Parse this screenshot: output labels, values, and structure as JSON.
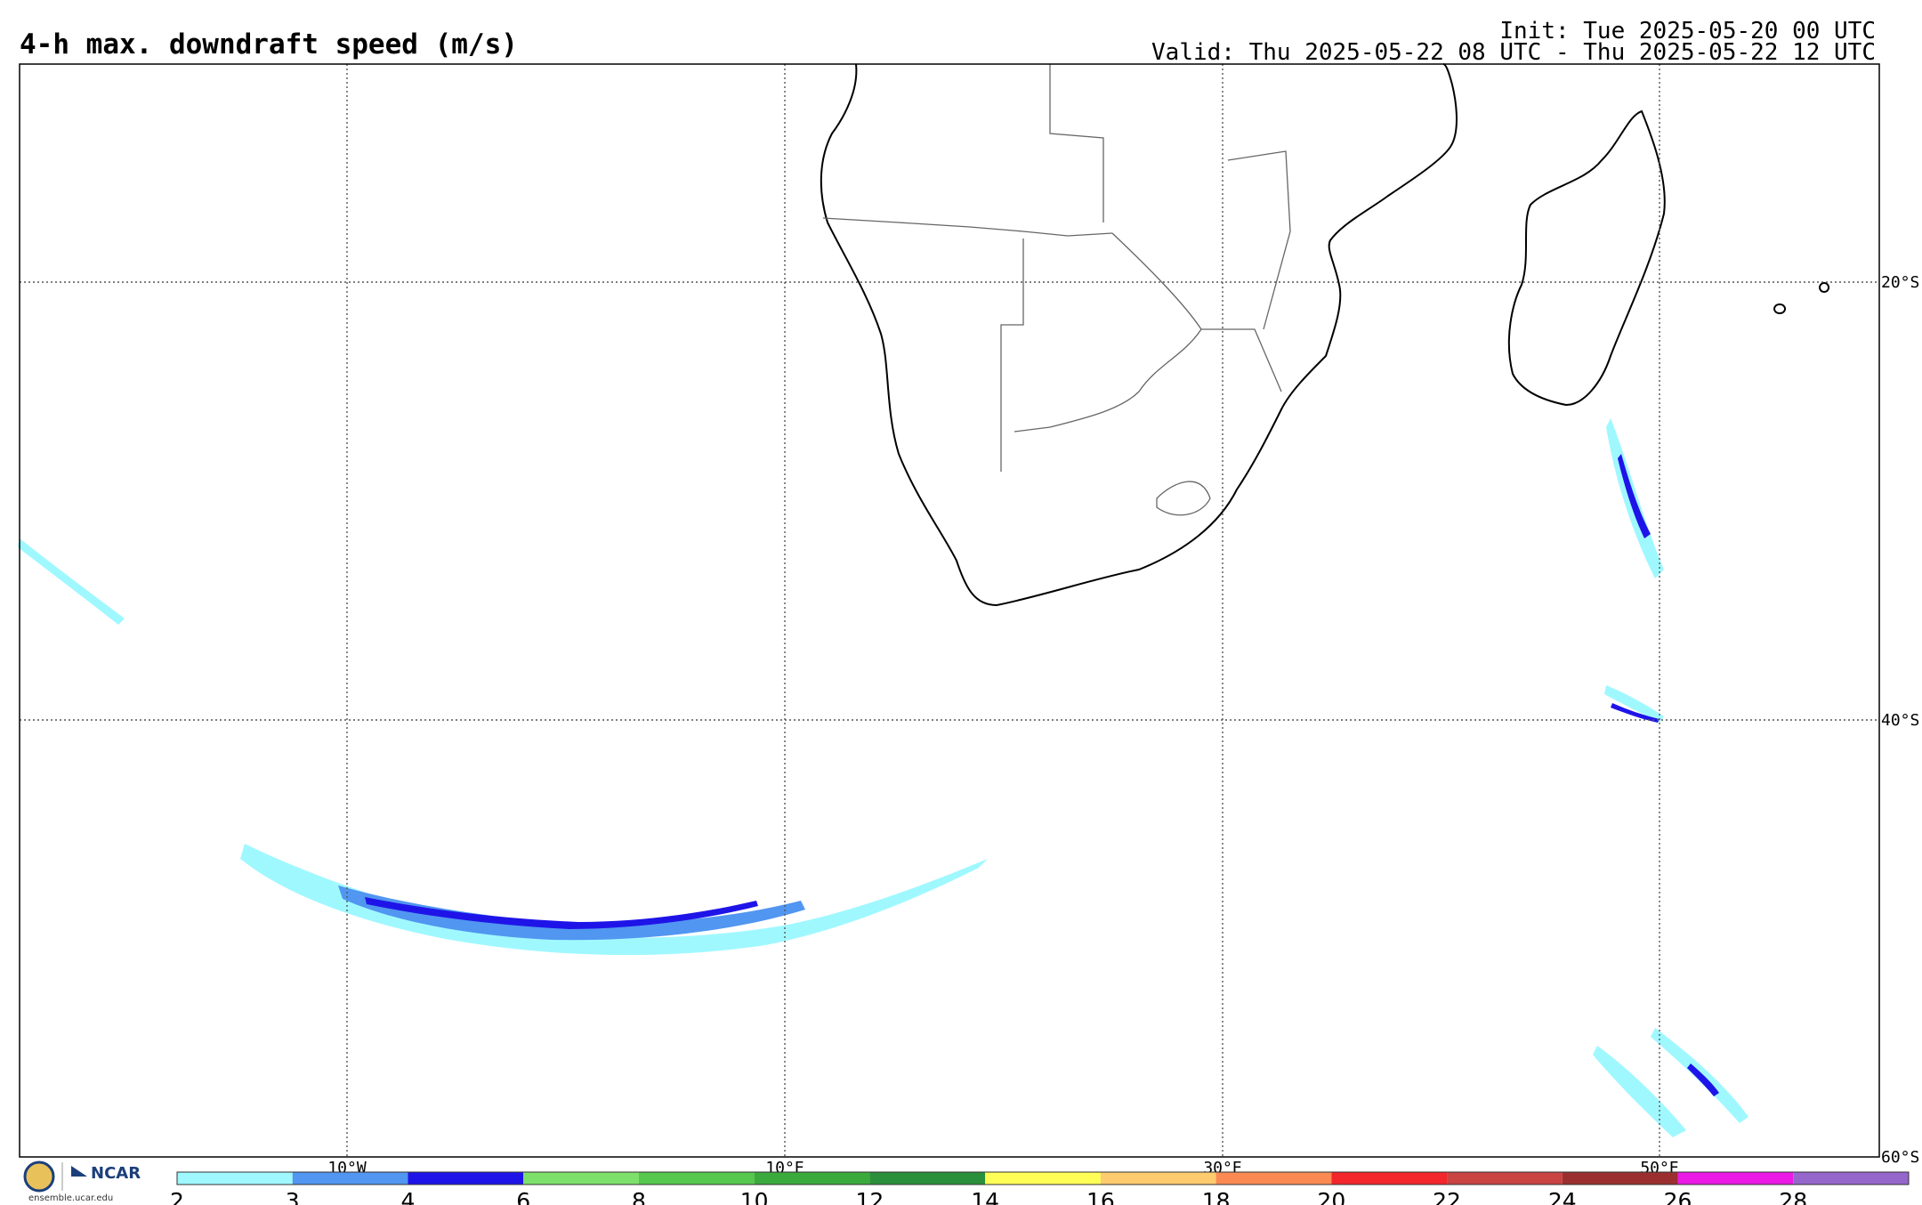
{
  "header": {
    "title": "4-h max. downdraft speed (m/s)",
    "init": "Init: Tue 2025-05-20 00 UTC",
    "valid": "Valid: Thu 2025-05-22 08 UTC - Thu 2025-05-22 12 UTC"
  },
  "map": {
    "lon_labels": [
      "10°W",
      "10°E",
      "30°E",
      "50°E"
    ],
    "lat_labels": [
      "20°S",
      "40°S",
      "60°S"
    ],
    "features": [
      "coastlines",
      "country-borders"
    ],
    "grid": true
  },
  "colorbar": {
    "ticks": [
      "2",
      "3",
      "4",
      "6",
      "8",
      "10",
      "12",
      "14",
      "16",
      "18",
      "20",
      "22",
      "24",
      "26",
      "28"
    ],
    "colors": [
      "#a0f8ff",
      "#5196f0",
      "#1f14e8",
      "#7ce06a",
      "#55c84d",
      "#3aaa3c",
      "#2a8f3a",
      "#fefe57",
      "#fecb6e",
      "#fb8a52",
      "#f3262b",
      "#c94343",
      "#9b2f2f",
      "#ea19e5",
      "#9566cb"
    ]
  },
  "branding": {
    "org": "NCAR",
    "url": "ensemble.ucar.edu"
  }
}
